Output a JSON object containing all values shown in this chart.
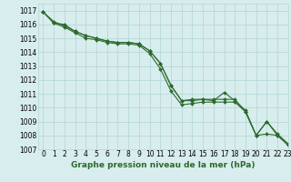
{
  "title": "Graphe pression niveau de la mer (hPa)",
  "bg_color": "#d8eded",
  "grid_color": "#b8d8d8",
  "line_color": "#2d6a2d",
  "xlim": [
    -0.5,
    23
  ],
  "ylim": [
    1007,
    1017.5
  ],
  "yticks": [
    1007,
    1008,
    1009,
    1010,
    1011,
    1012,
    1013,
    1014,
    1015,
    1016,
    1017
  ],
  "xticks": [
    0,
    1,
    2,
    3,
    4,
    5,
    6,
    7,
    8,
    9,
    10,
    11,
    12,
    13,
    14,
    15,
    16,
    17,
    18,
    19,
    20,
    21,
    22,
    23
  ],
  "series1": {
    "x": [
      0,
      1,
      2,
      3,
      4,
      5,
      6,
      7,
      8,
      9,
      10,
      11,
      12,
      13,
      14,
      15,
      16,
      17,
      18,
      19,
      20,
      21,
      22,
      23
    ],
    "y": [
      1016.9,
      1016.1,
      1016.0,
      1015.5,
      1015.2,
      1015.0,
      1014.8,
      1014.7,
      1014.7,
      1014.6,
      1014.1,
      1013.2,
      1011.6,
      1010.5,
      1010.5,
      1010.6,
      1010.5,
      1011.1,
      1010.5,
      1009.8,
      1008.0,
      1009.0,
      1008.0,
      1007.3
    ]
  },
  "series2": {
    "x": [
      0,
      1,
      2,
      3,
      4,
      5,
      6,
      7,
      8,
      9,
      10,
      11,
      12,
      13,
      14,
      15,
      16,
      17,
      18,
      19,
      20,
      21,
      22,
      23
    ],
    "y": [
      1016.9,
      1016.1,
      1015.8,
      1015.4,
      1015.0,
      1014.9,
      1014.7,
      1014.6,
      1014.6,
      1014.5,
      1013.9,
      1012.8,
      1011.2,
      1010.2,
      1010.3,
      1010.4,
      1010.4,
      1010.4,
      1010.4,
      1009.7,
      1008.0,
      1008.1,
      1008.0,
      1007.3
    ]
  },
  "series3": {
    "x": [
      0,
      1,
      2,
      3,
      4,
      5,
      6,
      7,
      8,
      9,
      10,
      11,
      12,
      13,
      14,
      15,
      16,
      17,
      18,
      19,
      20,
      21,
      22,
      23
    ],
    "y": [
      1016.9,
      1016.2,
      1015.9,
      1015.5,
      1015.2,
      1015.0,
      1014.8,
      1014.7,
      1014.7,
      1014.6,
      1014.1,
      1013.2,
      1011.6,
      1010.5,
      1010.6,
      1010.6,
      1010.6,
      1010.6,
      1010.6,
      1009.7,
      1008.0,
      1009.0,
      1008.1,
      1007.4
    ]
  },
  "ylabel_fontsize": 5.5,
  "xlabel_fontsize": 5.5,
  "title_fontsize": 6.5,
  "linewidth": 0.8,
  "markersize": 2.0
}
